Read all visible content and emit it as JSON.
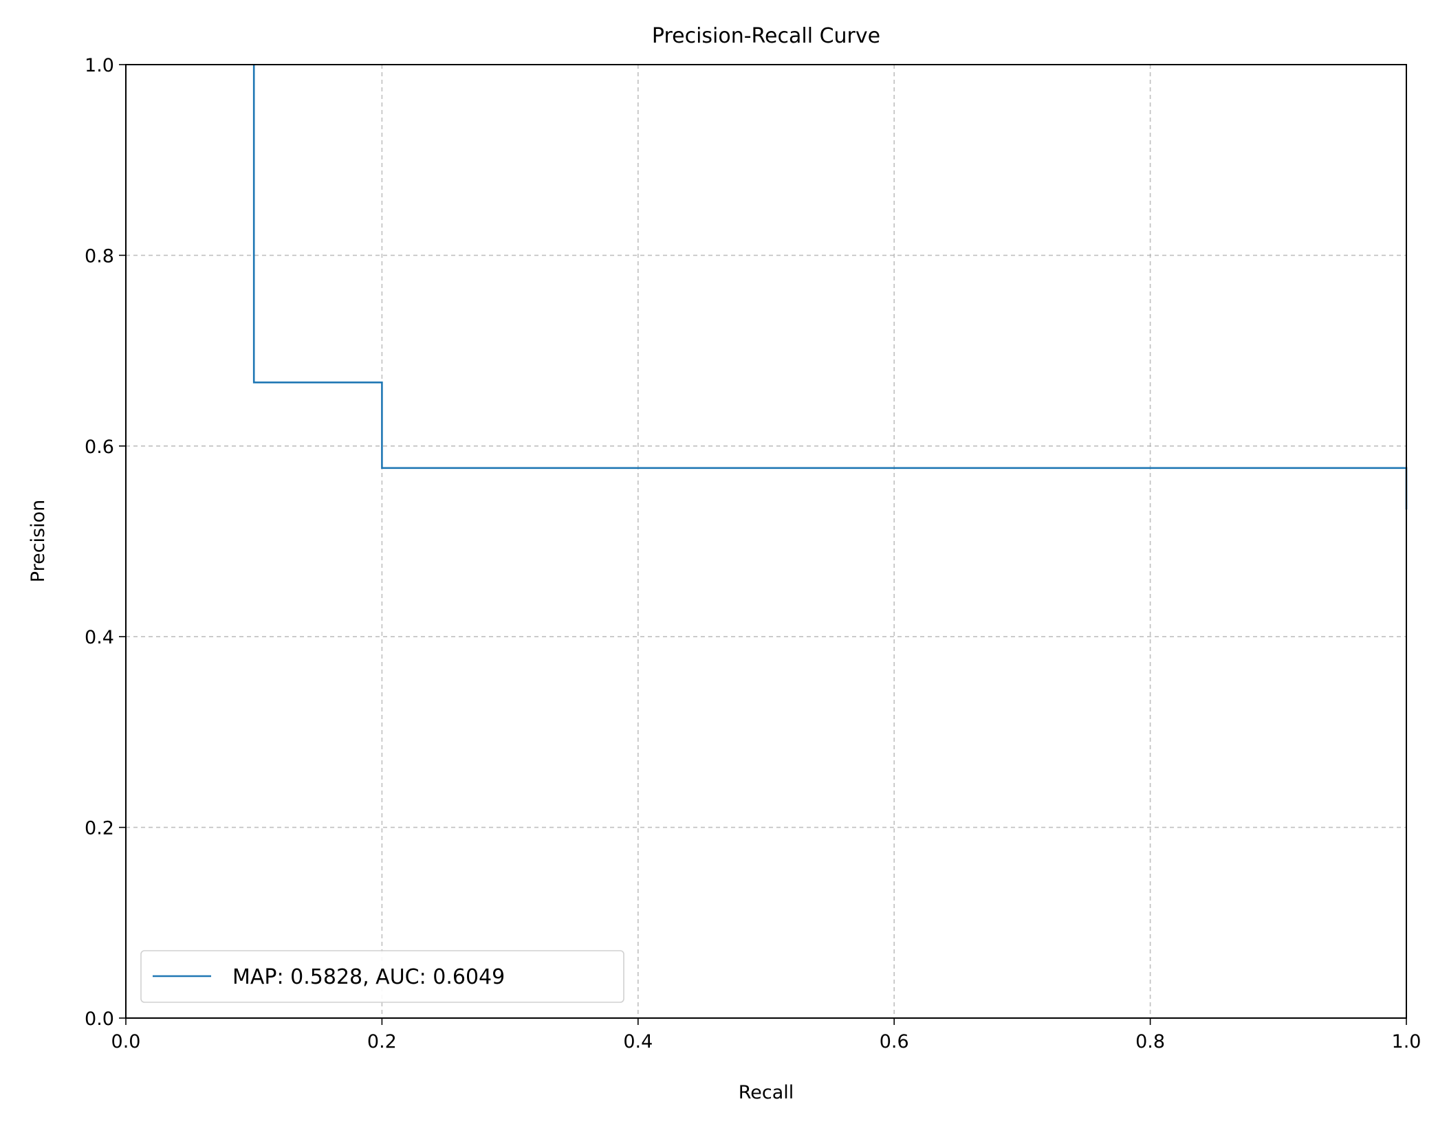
{
  "chart_data": {
    "type": "line",
    "title": "Precision-Recall Curve",
    "xlabel": "Recall",
    "ylabel": "Precision",
    "xlim": [
      0.0,
      1.0
    ],
    "ylim": [
      0.0,
      1.0
    ],
    "xticks": [
      "0.0",
      "0.2",
      "0.4",
      "0.6",
      "0.8",
      "1.0"
    ],
    "yticks": [
      "0.0",
      "0.2",
      "0.4",
      "0.6",
      "0.8",
      "1.0"
    ],
    "grid": true,
    "legend_position": "lower-left",
    "series": [
      {
        "name": "MAP: 0.5828, AUC: 0.6049",
        "color": "#1f77b4",
        "x": [
          0.1,
          0.1,
          0.2,
          0.2,
          1.0,
          1.0
        ],
        "y": [
          1.0,
          0.6667,
          0.6667,
          0.5769,
          0.5769,
          0.5333
        ]
      }
    ]
  }
}
